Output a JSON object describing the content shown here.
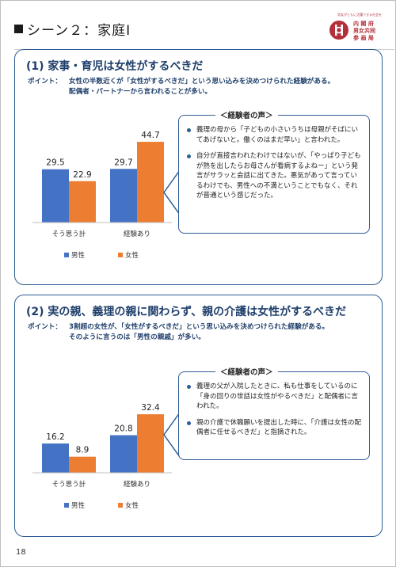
{
  "header": {
    "scene_title": "シーン２：家庭Ⅰ",
    "logo_tagline": "男女がともに活躍できる社会を",
    "logo_org_lines": [
      "内 閣 府",
      "男女共同",
      "参 画 局"
    ]
  },
  "sections": [
    {
      "title": "(1) 家事・育児は女性がするべきだ",
      "point_label": "ポイント：",
      "point_line1": "女性の半数近くが「女性がするべきだ」という思い込みを決めつけられた経験がある。",
      "point_line2": "配偶者・パートナーから言われることが多い。",
      "voice_title": "＜経験者の声＞",
      "voices": [
        "義理の母から「子どもの小さいうちは母親がそばにいてあげないと。働くのはまだ早い」と言われた。",
        "自分が直接言われたわけではないが、「やっぱり子どもが熱を出したらお母さんが看病するよねー」という発言がサラッと会話に出てきた。悪気があって言っているわけでも、男性への不満ということでもなく、それが普通という感じだった。"
      ]
    },
    {
      "title": "(2) 実の親、義理の親に関わらず、親の介護は女性がするべきだ",
      "point_label": "ポイント：",
      "point_line1": "3割超の女性が、「女性がするべきだ」という思い込みを決めつけられた経験がある。",
      "point_line2": "そのように言うのは「男性の親戚」が多い。",
      "voice_title": "＜経験者の声＞",
      "voices": [
        "義理の父が入院したときに、私も仕事をしているのに「身の回りの世話は女性がやるべきだ」と配偶者に言われた。",
        "親の介護で休職願いを提出した時に、「介護は女性の配偶者に任せるべきだ」と指摘された。"
      ]
    }
  ],
  "chart_data": [
    {
      "type": "bar",
      "categories": [
        "そう思う計",
        "経験あり"
      ],
      "series": [
        {
          "name": "男性",
          "values": [
            29.5,
            29.7
          ],
          "color": "#4472c4"
        },
        {
          "name": "女性",
          "values": [
            22.9,
            44.7
          ],
          "color": "#ed7d31"
        }
      ],
      "ylim": [
        0,
        50
      ],
      "legend": "bottom",
      "grid": false
    },
    {
      "type": "bar",
      "categories": [
        "そう思う計",
        "経験あり"
      ],
      "series": [
        {
          "name": "男性",
          "values": [
            16.2,
            20.8
          ],
          "color": "#4472c4"
        },
        {
          "name": "女性",
          "values": [
            8.9,
            32.4
          ],
          "color": "#ed7d31"
        }
      ],
      "ylim": [
        0,
        50
      ],
      "legend": "bottom",
      "grid": false
    }
  ],
  "page_number": "18"
}
